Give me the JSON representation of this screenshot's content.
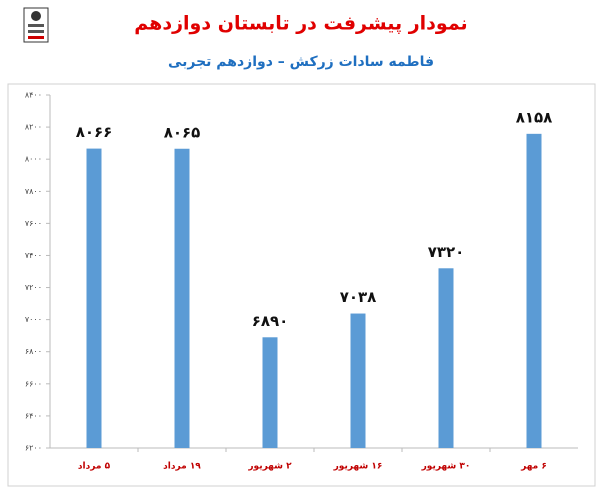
{
  "chart_data": {
    "type": "bar",
    "title": "نمودار پیشرفت در تابستان دوازدهم",
    "subtitle": "فاطمه سادات زرکش – دوازدهم تجربی",
    "categories": [
      "۵ مرداد",
      "۱۹ مرداد",
      "۲ شهریور",
      "۱۶ شهریور",
      "۳۰ شهریور",
      "۶ مهر"
    ],
    "values": [
      8066,
      8065,
      6890,
      7038,
      7320,
      8158
    ],
    "value_labels": [
      "۸۰۶۶",
      "۸۰۶۵",
      "۶۸۹۰",
      "۷۰۳۸",
      "۷۳۲۰",
      "۸۱۵۸"
    ],
    "color": "#5b9bd5",
    "ylim": [
      6200,
      8400
    ],
    "yticks": [
      {
        "value": 6200,
        "label": "۶۲۰۰"
      },
      {
        "value": 6400,
        "label": "۶۴۰۰"
      },
      {
        "value": 6600,
        "label": "۶۶۰۰"
      },
      {
        "value": 6800,
        "label": "۶۸۰۰"
      },
      {
        "value": 7000,
        "label": "۷۰۰۰"
      },
      {
        "value": 7200,
        "label": "۷۲۰۰"
      },
      {
        "value": 7400,
        "label": "۷۴۰۰"
      },
      {
        "value": 7600,
        "label": "۷۶۰۰"
      },
      {
        "value": 7800,
        "label": "۷۸۰۰"
      },
      {
        "value": 8000,
        "label": "۸۰۰۰"
      },
      {
        "value": 8200,
        "label": "۸۲۰۰"
      },
      {
        "value": 8400,
        "label": "۸۴۰۰"
      }
    ],
    "grid": false
  }
}
